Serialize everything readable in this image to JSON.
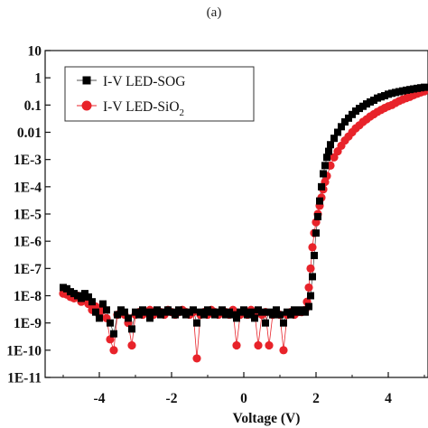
{
  "figure": {
    "panel_label": "(a)"
  },
  "chart_data": {
    "type": "scatter",
    "title": "",
    "xlabel": "Voltage (V)",
    "ylabel": "",
    "xlim": [
      -5.5,
      5.1
    ],
    "ylim_exponent": [
      -11,
      1
    ],
    "yscale": "log",
    "grid": false,
    "legend_position": "top-left",
    "x_ticks": [
      -4,
      -2,
      0,
      2,
      4
    ],
    "x_tick_labels": [
      "-4",
      "-2",
      "0",
      "2",
      "4"
    ],
    "y_ticks_exponent": [
      1,
      0,
      -1,
      -2,
      -3,
      -4,
      -5,
      -6,
      -7,
      -8,
      -9,
      -10,
      -11
    ],
    "y_tick_labels": [
      "10",
      "1",
      "0.1",
      "0.01",
      "1E-3",
      "1E-4",
      "1E-5",
      "1E-6",
      "1E-7",
      "1E-8",
      "1E-9",
      "1E-10",
      "1E-11"
    ],
    "series": [
      {
        "name": "I-V LED-SOG",
        "legend_parts": [
          "I-V LED-SOG"
        ],
        "marker": "square",
        "color": "#000000",
        "line_color": "#555555",
        "points": [
          [
            -5.0,
            2e-08
          ],
          [
            -4.9,
            1.8e-08
          ],
          [
            -4.8,
            1.4e-08
          ],
          [
            -4.7,
            1.2e-08
          ],
          [
            -4.6,
            1e-08
          ],
          [
            -4.5,
            8e-09
          ],
          [
            -4.4,
            1.2e-08
          ],
          [
            -4.3,
            9e-09
          ],
          [
            -4.2,
            6e-09
          ],
          [
            -4.1,
            2.5e-09
          ],
          [
            -4.0,
            1.5e-09
          ],
          [
            -3.9,
            5e-09
          ],
          [
            -3.8,
            3e-09
          ],
          [
            -3.7,
            1e-09
          ],
          [
            -3.6,
            4e-10
          ],
          [
            -3.5,
            2e-09
          ],
          [
            -3.4,
            3e-09
          ],
          [
            -3.3,
            2.5e-09
          ],
          [
            -3.2,
            1.5e-09
          ],
          [
            -3.1,
            6e-10
          ],
          [
            -3.0,
            2.5e-09
          ],
          [
            -2.9,
            2e-09
          ],
          [
            -2.8,
            3e-09
          ],
          [
            -2.7,
            2.5e-09
          ],
          [
            -2.6,
            1.5e-09
          ],
          [
            -2.5,
            2.5e-09
          ],
          [
            -2.4,
            3e-09
          ],
          [
            -2.3,
            2e-09
          ],
          [
            -2.2,
            2.5e-09
          ],
          [
            -2.1,
            3e-09
          ],
          [
            -2.0,
            2.5e-09
          ],
          [
            -1.9,
            2e-09
          ],
          [
            -1.8,
            3e-09
          ],
          [
            -1.7,
            2.5e-09
          ],
          [
            -1.6,
            2e-09
          ],
          [
            -1.5,
            2.5e-09
          ],
          [
            -1.4,
            3e-09
          ],
          [
            -1.3,
            1e-09
          ],
          [
            -1.2,
            2.5e-09
          ],
          [
            -1.1,
            2e-09
          ],
          [
            -1.0,
            3e-09
          ],
          [
            -0.9,
            2.5e-09
          ],
          [
            -0.8,
            2e-09
          ],
          [
            -0.7,
            2.5e-09
          ],
          [
            -0.6,
            3e-09
          ],
          [
            -0.5,
            2e-09
          ],
          [
            -0.4,
            2.5e-09
          ],
          [
            -0.3,
            2e-09
          ],
          [
            -0.2,
            1.5e-09
          ],
          [
            -0.1,
            2.5e-09
          ],
          [
            0.0,
            3e-09
          ],
          [
            0.1,
            2e-09
          ],
          [
            0.2,
            2.5e-09
          ],
          [
            0.3,
            1.5e-09
          ],
          [
            0.4,
            3e-09
          ],
          [
            0.5,
            2.5e-09
          ],
          [
            0.6,
            1e-09
          ],
          [
            0.7,
            2.5e-09
          ],
          [
            0.8,
            2e-09
          ],
          [
            0.9,
            3e-09
          ],
          [
            1.0,
            2e-09
          ],
          [
            1.1,
            1e-09
          ],
          [
            1.2,
            2.5e-09
          ],
          [
            1.3,
            2e-09
          ],
          [
            1.4,
            3e-09
          ],
          [
            1.5,
            2.5e-09
          ],
          [
            1.6,
            3e-09
          ],
          [
            1.7,
            2.5e-09
          ],
          [
            1.8,
            4e-09
          ],
          [
            1.85,
            1e-08
          ],
          [
            1.9,
            5e-08
          ],
          [
            1.95,
            3e-07
          ],
          [
            2.0,
            2e-06
          ],
          [
            2.05,
            8e-06
          ],
          [
            2.1,
            3e-05
          ],
          [
            2.15,
            0.0001
          ],
          [
            2.2,
            0.0003
          ],
          [
            2.25,
            0.0006
          ],
          [
            2.3,
            0.0012
          ],
          [
            2.35,
            0.002
          ],
          [
            2.4,
            0.0035
          ],
          [
            2.5,
            0.006
          ],
          [
            2.6,
            0.01
          ],
          [
            2.7,
            0.016
          ],
          [
            2.8,
            0.024
          ],
          [
            2.9,
            0.033
          ],
          [
            3.0,
            0.045
          ],
          [
            3.1,
            0.06
          ],
          [
            3.2,
            0.075
          ],
          [
            3.3,
            0.09
          ],
          [
            3.4,
            0.11
          ],
          [
            3.5,
            0.13
          ],
          [
            3.6,
            0.15
          ],
          [
            3.7,
            0.18
          ],
          [
            3.8,
            0.2
          ],
          [
            3.9,
            0.22
          ],
          [
            4.0,
            0.25
          ],
          [
            4.1,
            0.27
          ],
          [
            4.2,
            0.29
          ],
          [
            4.3,
            0.31
          ],
          [
            4.4,
            0.33
          ],
          [
            4.5,
            0.35
          ],
          [
            4.6,
            0.37
          ],
          [
            4.7,
            0.39
          ],
          [
            4.8,
            0.41
          ],
          [
            4.9,
            0.43
          ],
          [
            5.0,
            0.45
          ]
        ]
      },
      {
        "name": "I-V LED-SiO2",
        "legend_parts": [
          "I-V LED-SiO",
          "2"
        ],
        "marker": "circle",
        "color": "#e8232a",
        "line_color": "#e8232a",
        "points": [
          [
            -5.0,
            1.2e-08
          ],
          [
            -4.9,
            1.1e-08
          ],
          [
            -4.8,
            9e-09
          ],
          [
            -4.7,
            8e-09
          ],
          [
            -4.6,
            1e-08
          ],
          [
            -4.5,
            6e-09
          ],
          [
            -4.4,
            8e-09
          ],
          [
            -4.3,
            5e-09
          ],
          [
            -4.2,
            3e-09
          ],
          [
            -4.1,
            4e-09
          ],
          [
            -4.0,
            2e-09
          ],
          [
            -3.9,
            3e-09
          ],
          [
            -3.8,
            1.5e-09
          ],
          [
            -3.7,
            2.5e-10
          ],
          [
            -3.6,
            1e-10
          ],
          [
            -3.5,
            2e-09
          ],
          [
            -3.4,
            2.5e-09
          ],
          [
            -3.3,
            2e-09
          ],
          [
            -3.2,
            1e-09
          ],
          [
            -3.1,
            1.5e-10
          ],
          [
            -3.0,
            2e-09
          ],
          [
            -2.9,
            2.5e-09
          ],
          [
            -2.8,
            2e-09
          ],
          [
            -2.7,
            2.5e-09
          ],
          [
            -2.6,
            3e-09
          ],
          [
            -2.5,
            2e-09
          ],
          [
            -2.4,
            2.5e-09
          ],
          [
            -2.3,
            2.5e-09
          ],
          [
            -2.2,
            2e-09
          ],
          [
            -2.1,
            3e-09
          ],
          [
            -2.0,
            2.5e-09
          ],
          [
            -1.9,
            2e-09
          ],
          [
            -1.8,
            2.5e-09
          ],
          [
            -1.7,
            3e-09
          ],
          [
            -1.6,
            2.5e-09
          ],
          [
            -1.5,
            2e-09
          ],
          [
            -1.4,
            2.5e-09
          ],
          [
            -1.3,
            5e-11
          ],
          [
            -1.2,
            2e-09
          ],
          [
            -1.1,
            2.5e-09
          ],
          [
            -1.0,
            2e-09
          ],
          [
            -0.9,
            3e-09
          ],
          [
            -0.8,
            2.5e-09
          ],
          [
            -0.7,
            2e-09
          ],
          [
            -0.6,
            2.5e-09
          ],
          [
            -0.5,
            2.5e-09
          ],
          [
            -0.4,
            2e-09
          ],
          [
            -0.3,
            3e-09
          ],
          [
            -0.2,
            1.5e-10
          ],
          [
            -0.1,
            2e-09
          ],
          [
            0.0,
            2.5e-09
          ],
          [
            0.1,
            2e-09
          ],
          [
            0.2,
            3e-09
          ],
          [
            0.3,
            2.5e-09
          ],
          [
            0.4,
            1.5e-10
          ],
          [
            0.5,
            2e-09
          ],
          [
            0.6,
            2.5e-09
          ],
          [
            0.7,
            1.5e-10
          ],
          [
            0.8,
            2e-09
          ],
          [
            0.9,
            2.5e-09
          ],
          [
            1.0,
            2e-09
          ],
          [
            1.1,
            1e-10
          ],
          [
            1.2,
            2e-09
          ],
          [
            1.3,
            2.5e-09
          ],
          [
            1.4,
            2e-09
          ],
          [
            1.5,
            2.5e-09
          ],
          [
            1.6,
            2.5e-09
          ],
          [
            1.7,
            3e-09
          ],
          [
            1.75,
            6e-09
          ],
          [
            1.8,
            2e-08
          ],
          [
            1.85,
            1e-07
          ],
          [
            1.9,
            6e-07
          ],
          [
            1.95,
            2e-06
          ],
          [
            2.0,
            5e-06
          ],
          [
            2.05,
            1e-05
          ],
          [
            2.1,
            2e-05
          ],
          [
            2.15,
            4e-05
          ],
          [
            2.2,
            8e-05
          ],
          [
            2.25,
            0.00015
          ],
          [
            2.3,
            0.00025
          ],
          [
            2.4,
            0.0006
          ],
          [
            2.5,
            0.0012
          ],
          [
            2.6,
            0.002
          ],
          [
            2.7,
            0.0032
          ],
          [
            2.8,
            0.005
          ],
          [
            2.9,
            0.007
          ],
          [
            3.0,
            0.01
          ],
          [
            3.1,
            0.014
          ],
          [
            3.2,
            0.018
          ],
          [
            3.3,
            0.024
          ],
          [
            3.4,
            0.03
          ],
          [
            3.5,
            0.038
          ],
          [
            3.6,
            0.046
          ],
          [
            3.7,
            0.056
          ],
          [
            3.8,
            0.066
          ],
          [
            3.9,
            0.078
          ],
          [
            4.0,
            0.09
          ],
          [
            4.1,
            0.1
          ],
          [
            4.2,
            0.12
          ],
          [
            4.3,
            0.14
          ],
          [
            4.4,
            0.16
          ],
          [
            4.5,
            0.18
          ],
          [
            4.6,
            0.2
          ],
          [
            4.7,
            0.23
          ],
          [
            4.8,
            0.26
          ],
          [
            4.9,
            0.29
          ],
          [
            5.0,
            0.32
          ]
        ]
      }
    ]
  }
}
